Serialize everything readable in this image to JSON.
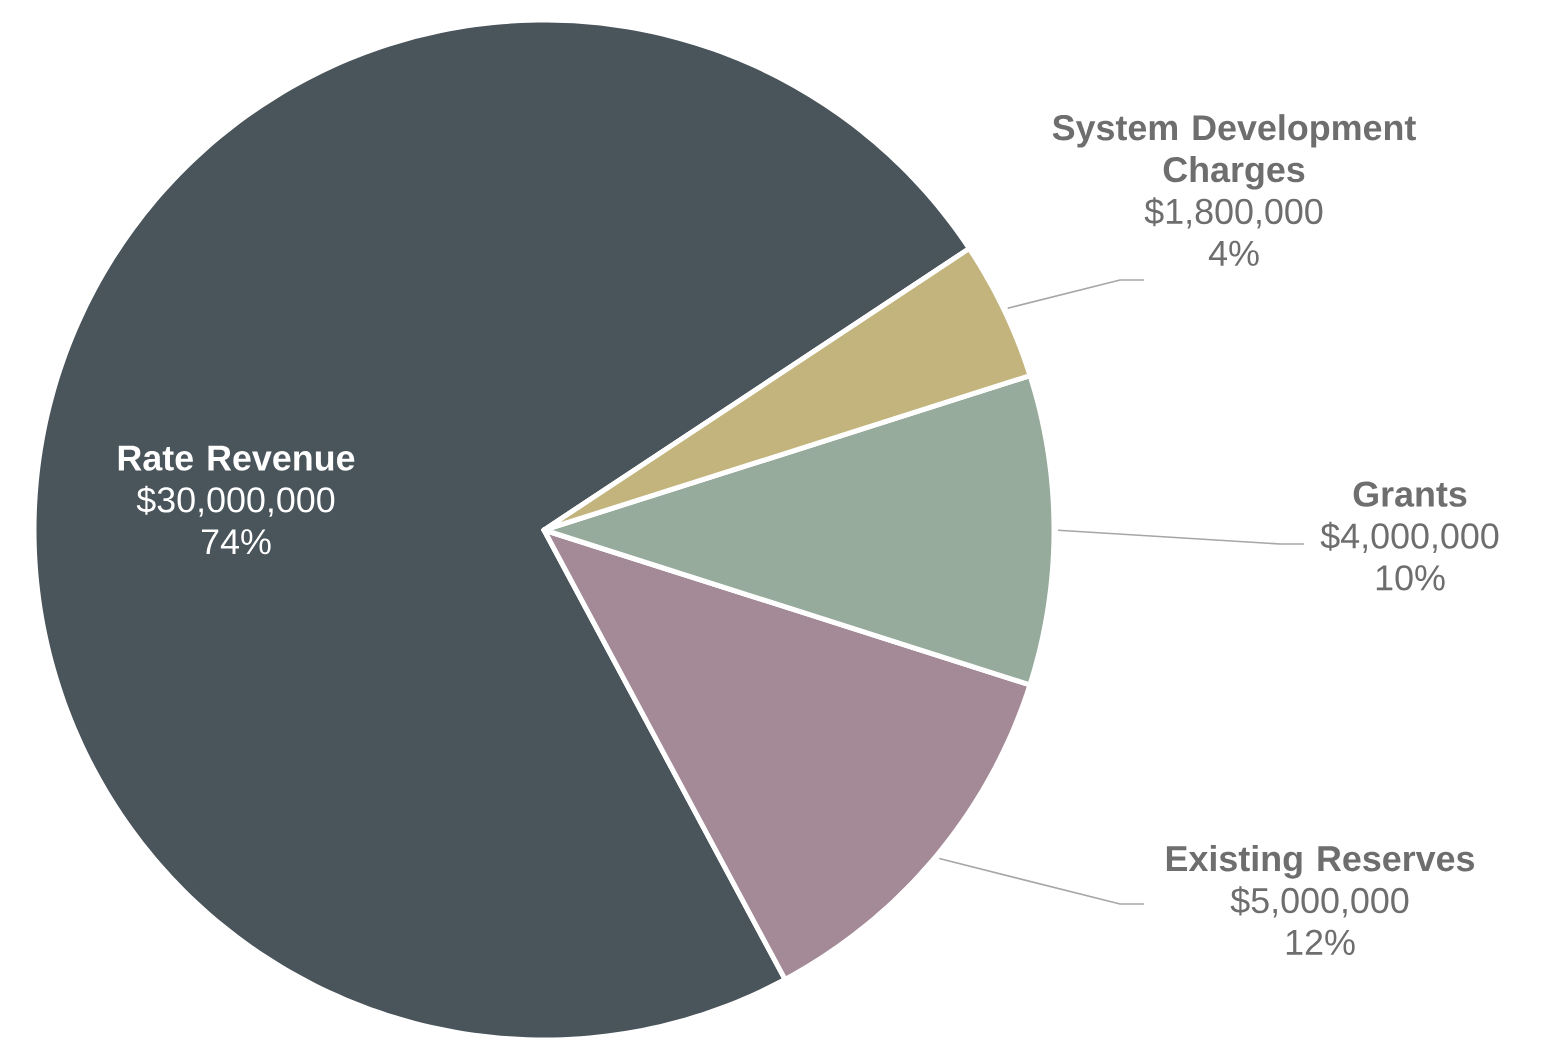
{
  "chart_data": {
    "type": "pie",
    "categories": [
      "Rate Revenue",
      "Existing Reserves",
      "Grants",
      "System Development Charges"
    ],
    "values": [
      30000000,
      5000000,
      4000000,
      1800000
    ],
    "value_labels": [
      "$30,000,000",
      "$5,000,000",
      "$4,000,000",
      "$1,800,000"
    ],
    "colors": [
      "#4a545b",
      "#a48a96",
      "#97ab9c",
      "#c2b47c"
    ],
    "annotations": [
      "74%",
      "12%",
      "10%",
      "4%"
    ]
  }
}
